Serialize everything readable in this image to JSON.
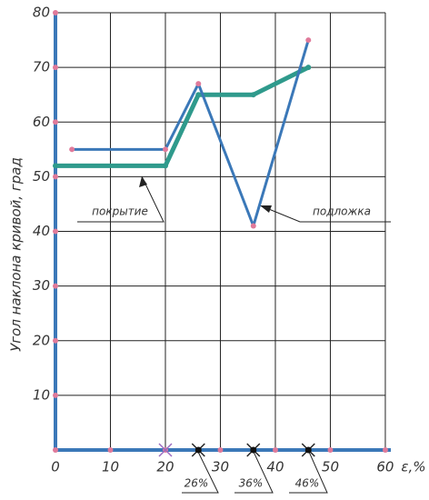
{
  "chart_data": {
    "type": "line",
    "y_label": "Угол наклона кривой, град",
    "x_label": "ε,%",
    "xlim": [
      0,
      61
    ],
    "ylim": [
      0,
      80
    ],
    "xticks": [
      0,
      10,
      20,
      30,
      40,
      50,
      60
    ],
    "yticks": [
      10,
      20,
      30,
      40,
      50,
      60,
      70,
      80
    ],
    "grid": true,
    "series": [
      {
        "name": "подложка",
        "color": "#3b78b8",
        "x": [
          3,
          20,
          26,
          36,
          46
        ],
        "values": [
          55,
          55,
          67,
          41,
          75
        ]
      },
      {
        "name": "покрытие",
        "color": "#2f9a8c",
        "x": [
          0,
          20,
          26,
          36,
          46
        ],
        "values": [
          52,
          52,
          65,
          65,
          70
        ]
      }
    ],
    "annotations": [
      "26%",
      "36%",
      "46%"
    ]
  }
}
